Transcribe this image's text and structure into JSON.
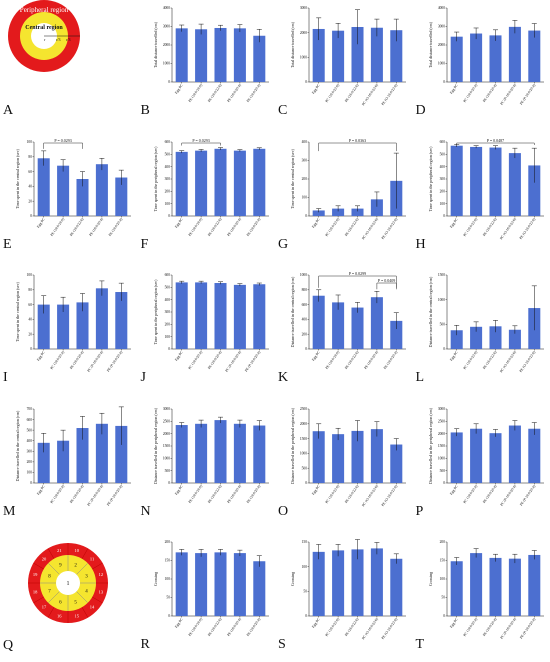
{
  "diagram_a": {
    "outer_label": "Peripheral region",
    "inner_label": "Central region",
    "r_labels": [
      "r",
      "r/3",
      "r/3"
    ]
  },
  "diagram_q": {
    "inner_numbers": [
      "1",
      "2",
      "3",
      "4",
      "5",
      "6",
      "7",
      "8",
      "9"
    ],
    "outer_numbers": [
      "10",
      "11",
      "12",
      "13",
      "14",
      "15",
      "16",
      "17",
      "18",
      "19",
      "20",
      "21"
    ]
  },
  "colors": {
    "bar": "#4c6fd0",
    "red": "#e31a1c",
    "yellow": "#f5e52f",
    "white": "#ffffff"
  },
  "chart_data": [
    {
      "panel": "B",
      "type": "bar",
      "categories": [
        "Egg PC",
        "PE (18:0/18:0)",
        "PE (18:0/22:6)",
        "PE (18:0/20:4)",
        "PE (18:0/20:4)"
      ],
      "values": [
        2900,
        2850,
        2920,
        2900,
        2500
      ],
      "errors": [
        180,
        280,
        150,
        200,
        350
      ],
      "ylim": [
        0,
        4000
      ],
      "yticks": [
        "0",
        "1000",
        "2000",
        "3000",
        "4000"
      ],
      "ylabel": "Total distance travelled (cm)",
      "annotations": []
    },
    {
      "panel": "C",
      "type": "bar",
      "categories": [
        "Egg PC",
        "PC (16:0/22:6)",
        "PE (16:0/22:6)",
        "PC (O-16:0/22:6)",
        "PE (O-16:0/22:6)"
      ],
      "values": [
        2150,
        2080,
        2230,
        2200,
        2100
      ],
      "errors": [
        450,
        300,
        700,
        350,
        450
      ],
      "ylim": [
        0,
        3000
      ],
      "yticks": [
        "0",
        "1000",
        "2000",
        "3000"
      ],
      "ylabel": "Total distance travelled (cm)",
      "annotations": []
    },
    {
      "panel": "D",
      "type": "bar",
      "categories": [
        "Egg PC",
        "PC (18:0/20:4)",
        "PE (18:0/20:4)",
        "PC (P-18:0/20:4)",
        "PE (P-18:0/20:4)"
      ],
      "values": [
        2450,
        2620,
        2520,
        2980,
        2780
      ],
      "errors": [
        250,
        300,
        300,
        350,
        380
      ],
      "ylim": [
        0,
        4000
      ],
      "yticks": [
        "0",
        "1000",
        "2000",
        "3000",
        "4000"
      ],
      "ylabel": "Total distance travelled (cm)",
      "annotations": []
    },
    {
      "panel": "E",
      "type": "bar",
      "categories": [
        "Egg PC",
        "PE (18:0/18:0)",
        "PE (18:0/22:6)",
        "PE (18:0/20:4)",
        "PE (18:0/20:4)"
      ],
      "values": [
        78,
        68,
        50,
        70,
        52
      ],
      "errors": [
        10,
        8,
        10,
        8,
        10
      ],
      "ylim": [
        0,
        100
      ],
      "yticks": [
        "0",
        "20",
        "40",
        "60",
        "80",
        "100"
      ],
      "ylabel": "Time spent in the central region (sec)",
      "annotations": [
        {
          "text": "P = 0.0293",
          "from": 0,
          "to": 2
        }
      ]
    },
    {
      "panel": "F",
      "type": "bar",
      "categories": [
        "Egg PC",
        "PE (18:0/18:0)",
        "PE (18:0/22:6)",
        "PE (18:0/20:4)",
        "PE (18:0/20:4)"
      ],
      "values": [
        520,
        530,
        545,
        530,
        545
      ],
      "errors": [
        10,
        10,
        10,
        8,
        8
      ],
      "ylim": [
        0,
        600
      ],
      "yticks": [
        "0",
        "100",
        "200",
        "300",
        "400",
        "500",
        "600"
      ],
      "ylabel": "Time spent in the peripheral region (sec)",
      "annotations": [
        {
          "text": "P = 0.0293",
          "from": 0,
          "to": 2
        }
      ]
    },
    {
      "panel": "G",
      "type": "bar",
      "categories": [
        "Egg PC",
        "PC (16:0/22:6)",
        "PE (16:0/22:6)",
        "PC (O-16:0/22:6)",
        "PE (O-16:0/22:6)"
      ],
      "values": [
        30,
        40,
        40,
        90,
        190
      ],
      "errors": [
        10,
        15,
        15,
        40,
        150
      ],
      "ylim": [
        0,
        400
      ],
      "yticks": [
        "0",
        "100",
        "200",
        "300",
        "400"
      ],
      "ylabel": "Time spent in the central region (sec)",
      "annotations": [
        {
          "text": "P = 0.0363",
          "from": 0,
          "to": 4
        }
      ]
    },
    {
      "panel": "H",
      "type": "bar",
      "categories": [
        "Egg PC",
        "PC (16:0/22:6)",
        "PE (16:0/22:6)",
        "PC (O-16:0/22:6)",
        "PE (O-16:0/22:6)"
      ],
      "values": [
        570,
        560,
        555,
        510,
        410
      ],
      "errors": [
        10,
        10,
        15,
        40,
        140
      ],
      "ylim": [
        0,
        600
      ],
      "yticks": [
        "0",
        "100",
        "200",
        "300",
        "400",
        "500",
        "600"
      ],
      "ylabel": "Time spent in the peripheral region (sec)",
      "annotations": [
        {
          "text": "P = 0.0487",
          "from": 0,
          "to": 4
        }
      ]
    },
    {
      "panel": "I",
      "type": "bar",
      "categories": [
        "Egg PC",
        "PC (18:0/20:4)",
        "PE (18:0/20:4)",
        "PC (P-18:0/20:4)",
        "PE (P-18:0/20:4)"
      ],
      "values": [
        60,
        60,
        63,
        82,
        77
      ],
      "errors": [
        12,
        10,
        12,
        10,
        12
      ],
      "ylim": [
        0,
        100
      ],
      "yticks": [
        "0",
        "20",
        "40",
        "60",
        "80",
        "100"
      ],
      "ylabel": "Time spent in the central region (sec)",
      "annotations": []
    },
    {
      "panel": "J",
      "type": "bar",
      "categories": [
        "Egg PC",
        "PC (18:0/20:4)",
        "PE (18:0/20:4)",
        "PC (P-18:0/20:4)",
        "PE (P-18:0/20:4)"
      ],
      "values": [
        540,
        540,
        535,
        520,
        525
      ],
      "errors": [
        10,
        10,
        10,
        10,
        10
      ],
      "ylim": [
        0,
        600
      ],
      "yticks": [
        "0",
        "100",
        "200",
        "300",
        "400",
        "500",
        "600"
      ],
      "ylabel": "Time spent in the peripheral region (sec)",
      "annotations": []
    },
    {
      "panel": "K",
      "type": "bar",
      "categories": [
        "Egg PC",
        "PE (18:0/18:0)",
        "PE (18:0/22:6)",
        "PE (18:0/20:4)",
        "PE (18:0/20:4)"
      ],
      "values": [
        720,
        630,
        560,
        700,
        380
      ],
      "errors": [
        80,
        100,
        70,
        80,
        110
      ],
      "ylim": [
        0,
        1000
      ],
      "yticks": [
        "0",
        "200",
        "400",
        "600",
        "800",
        "1000"
      ],
      "ylabel": "Distance travelled in the central region (cm)",
      "annotations": [
        {
          "text": "P = 0.0299",
          "from": 0,
          "to": 4
        },
        {
          "text": "P = 0.0409",
          "from": 3,
          "to": 4
        }
      ]
    },
    {
      "panel": "L",
      "type": "bar",
      "categories": [
        "Egg PC",
        "PC (16:0/22:6)",
        "PE (16:0/22:6)",
        "PC (O-16:0/22:6)",
        "PE (O-16:0/22:6)"
      ],
      "values": [
        380,
        450,
        460,
        390,
        830
      ],
      "errors": [
        100,
        100,
        120,
        80,
        450
      ],
      "ylim": [
        0,
        1500
      ],
      "yticks": [
        "0",
        "500",
        "1000",
        "1500"
      ],
      "ylabel": "Distance travelled in the central region (cm)",
      "annotations": []
    },
    {
      "panel": "M",
      "type": "bar",
      "categories": [
        "Egg PC",
        "PC (18:0/20:4)",
        "PE (18:0/20:4)",
        "PC (P-18:0/20:4)",
        "PE (P-18:0/20:4)"
      ],
      "values": [
        380,
        400,
        520,
        560,
        540
      ],
      "errors": [
        90,
        100,
        110,
        100,
        180
      ],
      "ylim": [
        0,
        700
      ],
      "yticks": [
        "0",
        "100",
        "200",
        "300",
        "400",
        "500",
        "600",
        "700"
      ],
      "ylabel": "Distance travelled in the central region (cm)",
      "annotations": []
    },
    {
      "panel": "N",
      "type": "bar",
      "categories": [
        "Egg PC",
        "PE (18:0/18:0)",
        "PE (18:0/22:6)",
        "PE (18:0/20:4)",
        "PE (18:0/20:4)"
      ],
      "values": [
        2350,
        2400,
        2550,
        2400,
        2330
      ],
      "errors": [
        100,
        150,
        120,
        150,
        200
      ],
      "ylim": [
        0,
        3000
      ],
      "yticks": [
        "0",
        "500",
        "1000",
        "1500",
        "2000",
        "2500",
        "3000"
      ],
      "ylabel": "Distance travelled in the peripheral region (cm)",
      "annotations": []
    },
    {
      "panel": "O",
      "type": "bar",
      "categories": [
        "Egg PC",
        "PC (16:0/22:6)",
        "PE (16:0/22:6)",
        "PC (O-16:0/22:6)",
        "PE (O-16:0/22:6)"
      ],
      "values": [
        1750,
        1650,
        1760,
        1820,
        1300
      ],
      "errors": [
        250,
        200,
        350,
        250,
        200
      ],
      "ylim": [
        0,
        2500
      ],
      "yticks": [
        "0",
        "500",
        "1000",
        "1500",
        "2000",
        "2500"
      ],
      "ylabel": "Distance travelled in the peripheral region (cm)",
      "annotations": []
    },
    {
      "panel": "P",
      "type": "bar",
      "categories": [
        "Egg PC",
        "PC (18:0/20:4)",
        "PE (18:0/20:4)",
        "PC (P-18:0/20:4)",
        "PE (P-18:0/20:4)"
      ],
      "values": [
        2050,
        2200,
        2020,
        2330,
        2200
      ],
      "errors": [
        150,
        200,
        150,
        200,
        250
      ],
      "ylim": [
        0,
        3000
      ],
      "yticks": [
        "0",
        "500",
        "1000",
        "1500",
        "2000",
        "2500",
        "3000"
      ],
      "ylabel": "Distance travelled in the peripheral region (cm)",
      "annotations": []
    },
    {
      "panel": "R",
      "type": "bar",
      "categories": [
        "Egg PC",
        "PE (18:0/18:0)",
        "PE (18:0/22:6)",
        "PE (18:0/20:4)",
        "PE (18:0/20:4)"
      ],
      "values": [
        172,
        170,
        172,
        170,
        148
      ],
      "errors": [
        8,
        10,
        8,
        8,
        15
      ],
      "ylim": [
        0,
        200
      ],
      "yticks": [
        "0",
        "50",
        "100",
        "150",
        "200"
      ],
      "ylabel": "Crossing",
      "annotations": []
    },
    {
      "panel": "S",
      "type": "bar",
      "categories": [
        "Egg PC",
        "PC (16:0/22:6)",
        "PE (16:0/22:6)",
        "PC (O-16:0/22:6)",
        "PE (O-16:0/22:6)"
      ],
      "values": [
        130,
        133,
        135,
        137,
        116
      ],
      "errors": [
        15,
        12,
        20,
        12,
        10
      ],
      "ylim": [
        0,
        150
      ],
      "yticks": [
        "0",
        "50",
        "100",
        "150"
      ],
      "ylabel": "Crossing",
      "annotations": []
    },
    {
      "panel": "T",
      "type": "bar",
      "categories": [
        "Egg PC",
        "PC (18:0/20:4)",
        "PE (18:0/20:4)",
        "PC (P-18:0/20:4)",
        "PE (P-18:0/20:4)"
      ],
      "values": [
        148,
        170,
        157,
        155,
        165
      ],
      "errors": [
        10,
        12,
        10,
        12,
        12
      ],
      "ylim": [
        0,
        200
      ],
      "yticks": [
        "0",
        "50",
        "100",
        "150",
        "200"
      ],
      "ylabel": "Crossing",
      "annotations": []
    }
  ]
}
